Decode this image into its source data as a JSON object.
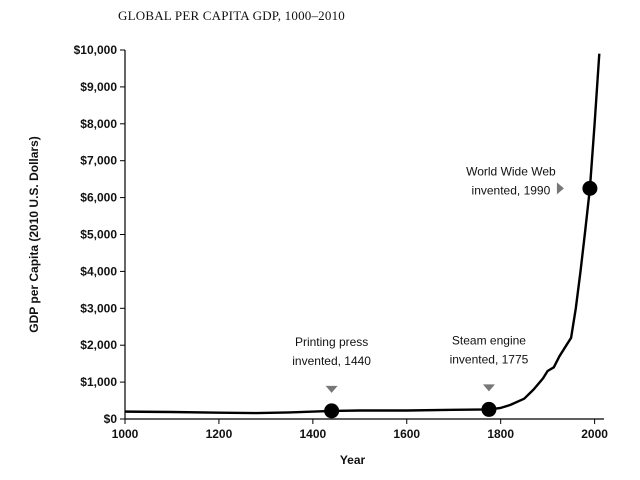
{
  "chart_data": {
    "type": "line",
    "title": "GLOBAL PER CAPITA GDP, 1000–2010",
    "xlabel": "Year",
    "ylabel": "GDP per Capita (2010 U.S. Dollars)",
    "xlim": [
      1000,
      2020
    ],
    "ylim": [
      0,
      10000
    ],
    "xticks": [
      1000,
      1200,
      1400,
      1600,
      1800,
      2000
    ],
    "yticks": [
      0,
      1000,
      2000,
      3000,
      4000,
      5000,
      6000,
      7000,
      8000,
      9000,
      10000
    ],
    "ytick_labels": [
      "$0",
      "$1,000",
      "$2,000",
      "$3,000",
      "$4,000",
      "$5,000",
      "$6,000",
      "$7,000",
      "$8,000",
      "$9,000",
      "$10,000"
    ],
    "grid": false,
    "series": [
      {
        "x": [
          1000,
          1100,
          1200,
          1280,
          1350,
          1440,
          1500,
          1600,
          1700,
          1775,
          1800,
          1820,
          1850,
          1870,
          1890,
          1900,
          1913,
          1925,
          1940,
          1950,
          1960,
          1970,
          1980,
          1990,
          2000,
          2010
        ],
        "y": [
          200,
          190,
          170,
          160,
          180,
          220,
          230,
          230,
          250,
          260,
          300,
          380,
          550,
          800,
          1100,
          1300,
          1400,
          1700,
          2000,
          2200,
          3000,
          4000,
          5100,
          6250,
          8000,
          9900
        ]
      }
    ],
    "markers": [
      {
        "x": 1440,
        "y": 220,
        "label_lines": [
          "Printing press",
          "invented, 1440"
        ],
        "arrow": "down"
      },
      {
        "x": 1775,
        "y": 260,
        "label_lines": [
          "Steam engine",
          "invented, 1775"
        ],
        "arrow": "down"
      },
      {
        "x": 1990,
        "y": 6250,
        "label_lines": [
          "World Wide Web",
          "invented, 1990"
        ],
        "arrow": "right"
      }
    ],
    "colors": {
      "line": "#000000",
      "marker": "#000000",
      "arrow": "#777777"
    }
  }
}
